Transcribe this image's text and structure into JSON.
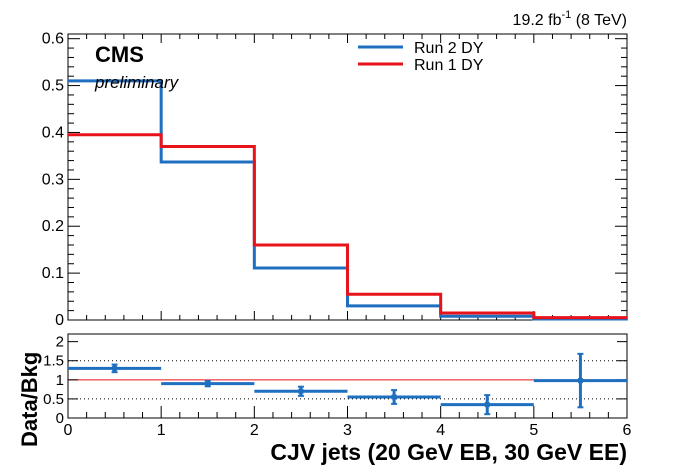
{
  "chart_data": [
    {
      "type": "line",
      "drawstyle": "steps",
      "title": "",
      "lumi_label_main": "19.2 fb",
      "lumi_label_sup": "-1",
      "lumi_label_energy": " (8 TeV)",
      "experiment_label": "CMS",
      "status_label": "preliminary",
      "xlabel": "",
      "ylabel": "",
      "xlim": [
        0,
        6
      ],
      "ylim": [
        0,
        0.61
      ],
      "yticks": [
        0,
        0.1,
        0.2,
        0.3,
        0.4,
        0.5,
        0.6
      ],
      "ytick_labels": [
        "0",
        "0.1",
        "0.2",
        "0.3",
        "0.4",
        "0.5",
        "0.6"
      ],
      "legend_position": "top-center",
      "bin_edges": [
        0,
        1,
        2,
        3,
        4,
        5,
        6
      ],
      "series": [
        {
          "name": "Run 2 DY",
          "color": "#1f6fc0",
          "values": [
            0.51,
            0.337,
            0.111,
            0.03,
            0.008,
            0.002
          ]
        },
        {
          "name": "Run 1 DY",
          "color": "#e8131a",
          "values": [
            0.395,
            0.37,
            0.16,
            0.055,
            0.015,
            0.005
          ]
        }
      ]
    },
    {
      "type": "scatter",
      "title": "",
      "xlabel": "CJV jets (20 GeV EB, 30 GeV EE)",
      "ylabel": "Data/Bkg",
      "xlim": [
        0,
        6
      ],
      "ylim": [
        0,
        2.2
      ],
      "xticks": [
        0,
        1,
        2,
        3,
        4,
        5,
        6
      ],
      "xtick_labels": [
        "0",
        "1",
        "2",
        "3",
        "4",
        "5",
        "6"
      ],
      "yticks": [
        0,
        0.5,
        1,
        1.5,
        2
      ],
      "ytick_labels": [
        "0",
        "0.5",
        "1",
        "1.5",
        "2"
      ],
      "reference_line": 1,
      "reference_color": "#e8131a",
      "dotted_gridlines": [
        0.5,
        1.5
      ],
      "marker_color": "#1f6fc0",
      "points": [
        {
          "x": 0.5,
          "y": 1.3,
          "xerr": 0.5,
          "yerr": 0.1
        },
        {
          "x": 1.5,
          "y": 0.9,
          "xerr": 0.5,
          "yerr": 0.07
        },
        {
          "x": 2.5,
          "y": 0.7,
          "xerr": 0.5,
          "yerr": 0.12
        },
        {
          "x": 3.5,
          "y": 0.55,
          "xerr": 0.5,
          "yerr": 0.18
        },
        {
          "x": 4.5,
          "y": 0.35,
          "xerr": 0.5,
          "yerr": 0.25
        },
        {
          "x": 5.5,
          "y": 0.98,
          "xerr": 0.5,
          "yerr": 0.7
        }
      ]
    }
  ]
}
